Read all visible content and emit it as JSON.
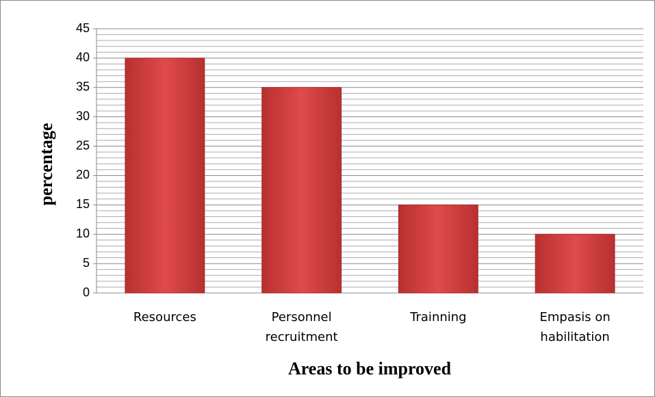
{
  "chart_data": {
    "type": "bar",
    "x_label": "Areas to be improved",
    "y_label": "percentage",
    "categories": [
      "Resources",
      "Personnel recruitment",
      "Trainning",
      "Empasis on habilitation"
    ],
    "values": [
      40,
      35,
      15,
      10
    ],
    "color": "#d94040",
    "ylim": [
      0,
      45
    ],
    "yticks": [
      0,
      5,
      10,
      15,
      20,
      25,
      30,
      35,
      40,
      45
    ],
    "grid": true
  }
}
